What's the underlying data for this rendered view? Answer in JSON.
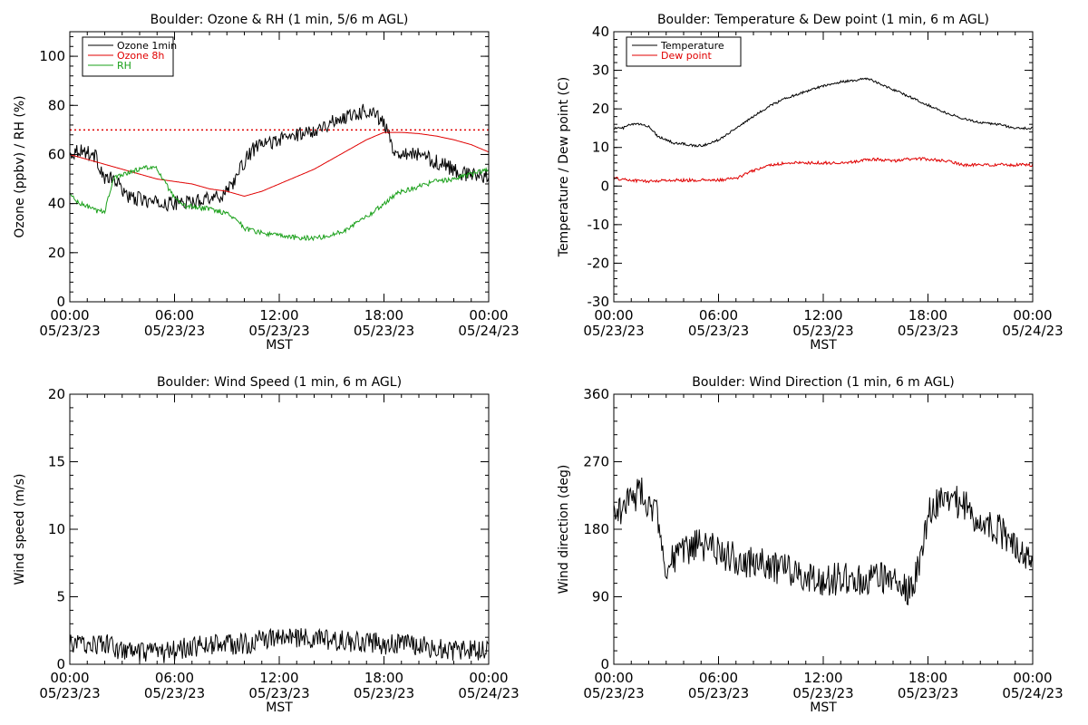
{
  "colors": {
    "black": "#000000",
    "red": "#e00000",
    "green": "#1aa01a"
  },
  "chart_data": [
    {
      "type": "line",
      "title": "Boulder: Ozone & RH (1 min, 5/6 m AGL)",
      "xlabel": "MST",
      "ylabel": "Ozone (ppbv) / RH (%)",
      "xlim": [
        0,
        24
      ],
      "ylim": [
        0,
        110
      ],
      "xticks": [
        0,
        6,
        12,
        18,
        24
      ],
      "xtick_labels": [
        [
          "00:00",
          "05/23/23"
        ],
        [
          "06:00",
          "05/23/23"
        ],
        [
          "12:00",
          "05/23/23"
        ],
        [
          "18:00",
          "05/23/23"
        ],
        [
          "00:00",
          "05/24/23"
        ]
      ],
      "yticks": [
        0,
        20,
        40,
        60,
        80,
        100
      ],
      "legend": "top-left",
      "reference_line": {
        "y": 70,
        "color": "red",
        "style": "dotted"
      },
      "series": [
        {
          "name": "Ozone 1min",
          "color": "black",
          "noise": 3,
          "x": [
            0,
            0.5,
            1,
            1.5,
            2,
            2.5,
            3,
            3.5,
            4,
            5,
            6,
            6.5,
            7,
            7.5,
            8,
            8.5,
            9,
            9.5,
            10,
            10.5,
            11,
            12,
            13,
            14,
            15,
            16,
            17,
            17.5,
            18,
            18.3,
            18.5,
            19,
            20,
            21,
            22,
            22.5,
            23,
            23.5,
            24
          ],
          "y": [
            60,
            62,
            61,
            59,
            50,
            50,
            46,
            42,
            42,
            40,
            40,
            41,
            40,
            42,
            43,
            42,
            46,
            50,
            57,
            62,
            64,
            66,
            68,
            70,
            73,
            76,
            78,
            77,
            72,
            68,
            62,
            61,
            60,
            57,
            54,
            52,
            52,
            51,
            52
          ]
        },
        {
          "name": "Ozone 8h",
          "color": "red",
          "noise": 0,
          "x": [
            0,
            1,
            2,
            3,
            4,
            5,
            6,
            7,
            8,
            9,
            10,
            11,
            12,
            13,
            14,
            15,
            16,
            17,
            18,
            19,
            20,
            21,
            22,
            23,
            24
          ],
          "y": [
            60,
            58,
            56,
            54,
            52,
            50,
            49,
            48,
            46,
            45,
            43,
            45,
            48,
            51,
            54,
            58,
            62,
            66,
            69,
            69,
            68.5,
            67.5,
            66,
            64,
            61
          ]
        },
        {
          "name": "RH",
          "color": "green",
          "noise": 1,
          "x": [
            0,
            0.5,
            1,
            1.5,
            2,
            2.5,
            3,
            3.5,
            4,
            4.5,
            5,
            5.5,
            6,
            6.5,
            7,
            7.5,
            8,
            8.5,
            9,
            9.5,
            10,
            11,
            12,
            13,
            14,
            15,
            16,
            16.5,
            17,
            17.5,
            18,
            18.5,
            19,
            20,
            21,
            22,
            23,
            24
          ],
          "y": [
            44,
            40,
            39,
            37,
            37,
            50,
            52,
            53,
            54,
            55,
            54,
            48,
            42,
            39,
            39,
            38,
            38,
            37,
            36,
            34,
            30,
            28,
            27,
            26,
            26,
            27,
            30,
            33,
            35,
            37,
            40,
            43,
            45,
            47,
            49,
            50,
            52,
            54
          ]
        }
      ]
    },
    {
      "type": "line",
      "title": "Boulder: Temperature & Dew point (1 min, 6 m AGL)",
      "xlabel": "MST",
      "ylabel": "Temperature / Dew point (C)",
      "xlim": [
        0,
        24
      ],
      "ylim": [
        -30,
        40
      ],
      "xticks": [
        0,
        6,
        12,
        18,
        24
      ],
      "xtick_labels": [
        [
          "00:00",
          "05/23/23"
        ],
        [
          "06:00",
          "05/23/23"
        ],
        [
          "12:00",
          "05/23/23"
        ],
        [
          "18:00",
          "05/23/23"
        ],
        [
          "00:00",
          "05/24/23"
        ]
      ],
      "yticks": [
        -30,
        -20,
        -10,
        0,
        10,
        20,
        30,
        40
      ],
      "legend": "top-left",
      "series": [
        {
          "name": "Temperature",
          "color": "black",
          "noise": 0.3,
          "x": [
            0,
            0.5,
            1,
            1.5,
            2,
            2.5,
            3,
            3.5,
            4,
            4.5,
            5,
            5.5,
            6,
            7,
            8,
            9,
            10,
            11,
            12,
            13,
            14,
            14.5,
            15,
            16,
            17,
            18,
            19,
            20,
            21,
            22,
            23,
            24
          ],
          "y": [
            15,
            15,
            16,
            16,
            15.5,
            13,
            12,
            11,
            11,
            10.5,
            10.5,
            11,
            12,
            15,
            18,
            21,
            23,
            24.5,
            26,
            27,
            27.5,
            28,
            27,
            25,
            23,
            21,
            19,
            17.5,
            16.5,
            16,
            15,
            15
          ]
        },
        {
          "name": "Dew point",
          "color": "red",
          "noise": 0.4,
          "x": [
            0,
            1,
            2,
            3,
            4,
            5,
            6,
            7,
            8,
            9,
            10,
            11,
            12,
            13,
            14,
            15,
            16,
            17,
            18,
            19,
            20,
            21,
            22,
            23,
            24
          ],
          "y": [
            2,
            1.5,
            1.2,
            1.5,
            1.5,
            1.5,
            1.5,
            2,
            4,
            5.5,
            6,
            6,
            6,
            6,
            6.5,
            7,
            6.5,
            7,
            7,
            6.5,
            5.5,
            5.5,
            5.5,
            5.5,
            5.5
          ]
        }
      ]
    },
    {
      "type": "line",
      "title": "Boulder: Wind Speed (1 min, 6 m AGL)",
      "xlabel": "MST",
      "ylabel": "Wind speed (m/s)",
      "xlim": [
        0,
        24
      ],
      "ylim": [
        0,
        20
      ],
      "xticks": [
        0,
        6,
        12,
        18,
        24
      ],
      "xtick_labels": [
        [
          "00:00",
          "05/23/23"
        ],
        [
          "06:00",
          "05/23/23"
        ],
        [
          "12:00",
          "05/23/23"
        ],
        [
          "18:00",
          "05/23/23"
        ],
        [
          "00:00",
          "05/24/23"
        ]
      ],
      "yticks": [
        0,
        5,
        10,
        15,
        20
      ],
      "series": [
        {
          "name": "",
          "color": "black",
          "noise": 0.8,
          "x": [
            0,
            1,
            2,
            3,
            4,
            5,
            6,
            7,
            8,
            9,
            10,
            11,
            12,
            13,
            14,
            15,
            16,
            17,
            18,
            19,
            20,
            21,
            22,
            23,
            24
          ],
          "y": [
            1.5,
            1.5,
            1.5,
            1,
            0.8,
            0.8,
            1,
            1.3,
            1.5,
            1.5,
            1.5,
            1.8,
            2,
            2,
            1.8,
            1.8,
            1.7,
            1.6,
            1.5,
            1.5,
            1.4,
            1.2,
            1,
            1,
            1.2
          ]
        }
      ]
    },
    {
      "type": "line",
      "title": "Boulder: Wind Direction (1 min, 6 m AGL)",
      "xlabel": "MST",
      "ylabel": "Wind direction (deg)",
      "xlim": [
        0,
        24
      ],
      "ylim": [
        0,
        360
      ],
      "xticks": [
        0,
        6,
        12,
        18,
        24
      ],
      "xtick_labels": [
        [
          "00:00",
          "05/23/23"
        ],
        [
          "06:00",
          "05/23/23"
        ],
        [
          "12:00",
          "05/23/23"
        ],
        [
          "18:00",
          "05/23/23"
        ],
        [
          "00:00",
          "05/24/23"
        ]
      ],
      "yticks": [
        0,
        90,
        180,
        270,
        360
      ],
      "series": [
        {
          "name": "",
          "color": "black",
          "noise": 22,
          "x": [
            0,
            0.5,
            1,
            1.5,
            2,
            2.5,
            3,
            4,
            5,
            6,
            7,
            8,
            9,
            10,
            11,
            12,
            13,
            14,
            15,
            16,
            17,
            17.5,
            18,
            18.5,
            19,
            20,
            21,
            22,
            23,
            24
          ],
          "y": [
            200,
            210,
            220,
            230,
            215,
            200,
            130,
            150,
            160,
            150,
            140,
            135,
            130,
            125,
            120,
            110,
            115,
            110,
            120,
            110,
            100,
            130,
            200,
            215,
            220,
            215,
            190,
            180,
            160,
            140
          ]
        }
      ]
    }
  ]
}
